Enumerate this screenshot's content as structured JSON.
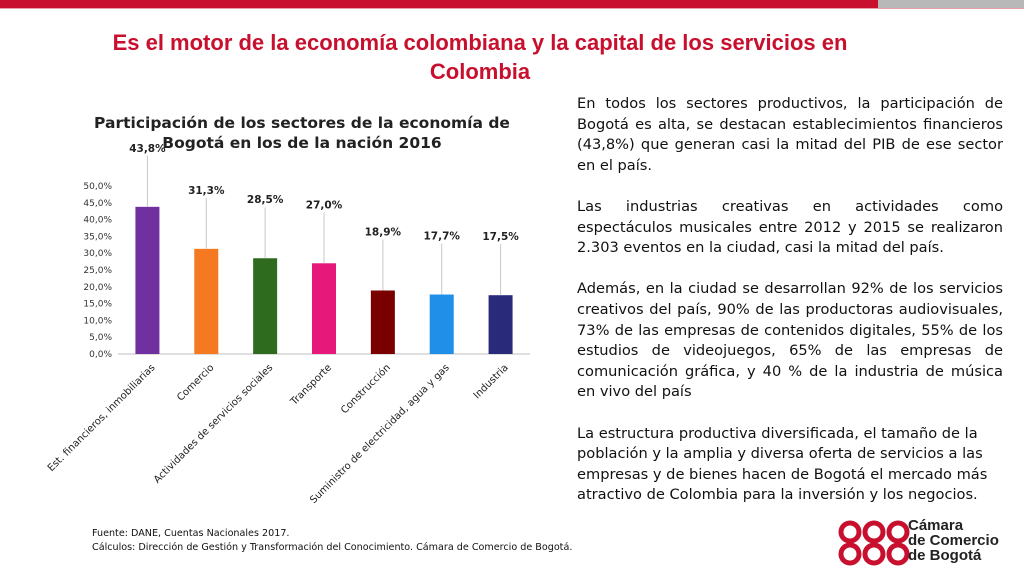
{
  "title": "Es el motor de la economía colombiana y la capital de los servicios en Colombia",
  "chart_title": "Participación de los sectores de la economía de Bogotá en los de la nación 2016",
  "chart_data": {
    "type": "bar",
    "title": "Participación de los sectores de la economía de Bogotá en los de la nación 2016",
    "categories": [
      "Est. financieros, inmobiliarias",
      "Comercio",
      "Actividades de servicios sociales",
      "Transporte",
      "Construcción",
      "Suministro de electricidad, agua y gas",
      "Industria"
    ],
    "values": [
      43.8,
      31.3,
      28.5,
      27.0,
      18.9,
      17.7,
      17.5
    ],
    "value_labels": [
      "43,8%",
      "31,3%",
      "28,5%",
      "27,0%",
      "18,9%",
      "17,7%",
      "17,5%"
    ],
    "colors": [
      "#7030a0",
      "#f47920",
      "#2e6b1f",
      "#e6197a",
      "#7a0000",
      "#1f8fe8",
      "#2a2a7a"
    ],
    "ylim": [
      0,
      50
    ],
    "yticks": [
      "0,0%",
      "5,0%",
      "10,0%",
      "15,0%",
      "20,0%",
      "25,0%",
      "30,0%",
      "35,0%",
      "40,0%",
      "45,0%",
      "50,0%"
    ],
    "grid": false,
    "xlabel": "",
    "ylabel": ""
  },
  "paragraphs": [
    "En todos los sectores productivos, la participación de Bogotá es alta, se destacan establecimientos financieros (43,8%) que generan casi la mitad del PIB de ese sector en el país.",
    "Las industrias creativas en actividades como espectáculos musicales entre 2012 y 2015 se realizaron 2.303 eventos en la ciudad, casi la mitad del país.",
    "Además, en la ciudad se desarrollan 92% de los servicios creativos del país, 90% de las productoras audiovisuales, 73% de las empresas de contenidos digitales, 55% de los estudios de videojuegos, 65% de las empresas de comunicación gráfica, y 40 % de la industria de música en vivo del país",
    "La estructura productiva diversificada, el tamaño de la población y la amplia y diversa oferta de servicios a las empresas y de bienes hacen de Bogotá  el mercado más atractivo de Colombia para la inversión y los negocios."
  ],
  "footer": {
    "source": "Fuente: DANE, Cuentas Nacionales 2017.",
    "calc": "Cálculos: Dirección de Gestión y Transformación del Conocimiento. Cámara de Comercio de Bogotá."
  },
  "logo": {
    "line1": "Cámara",
    "line2": "de Comercio",
    "line3": "de Bogotá",
    "color": "#c8102e"
  },
  "accent_color": "#c8102e"
}
